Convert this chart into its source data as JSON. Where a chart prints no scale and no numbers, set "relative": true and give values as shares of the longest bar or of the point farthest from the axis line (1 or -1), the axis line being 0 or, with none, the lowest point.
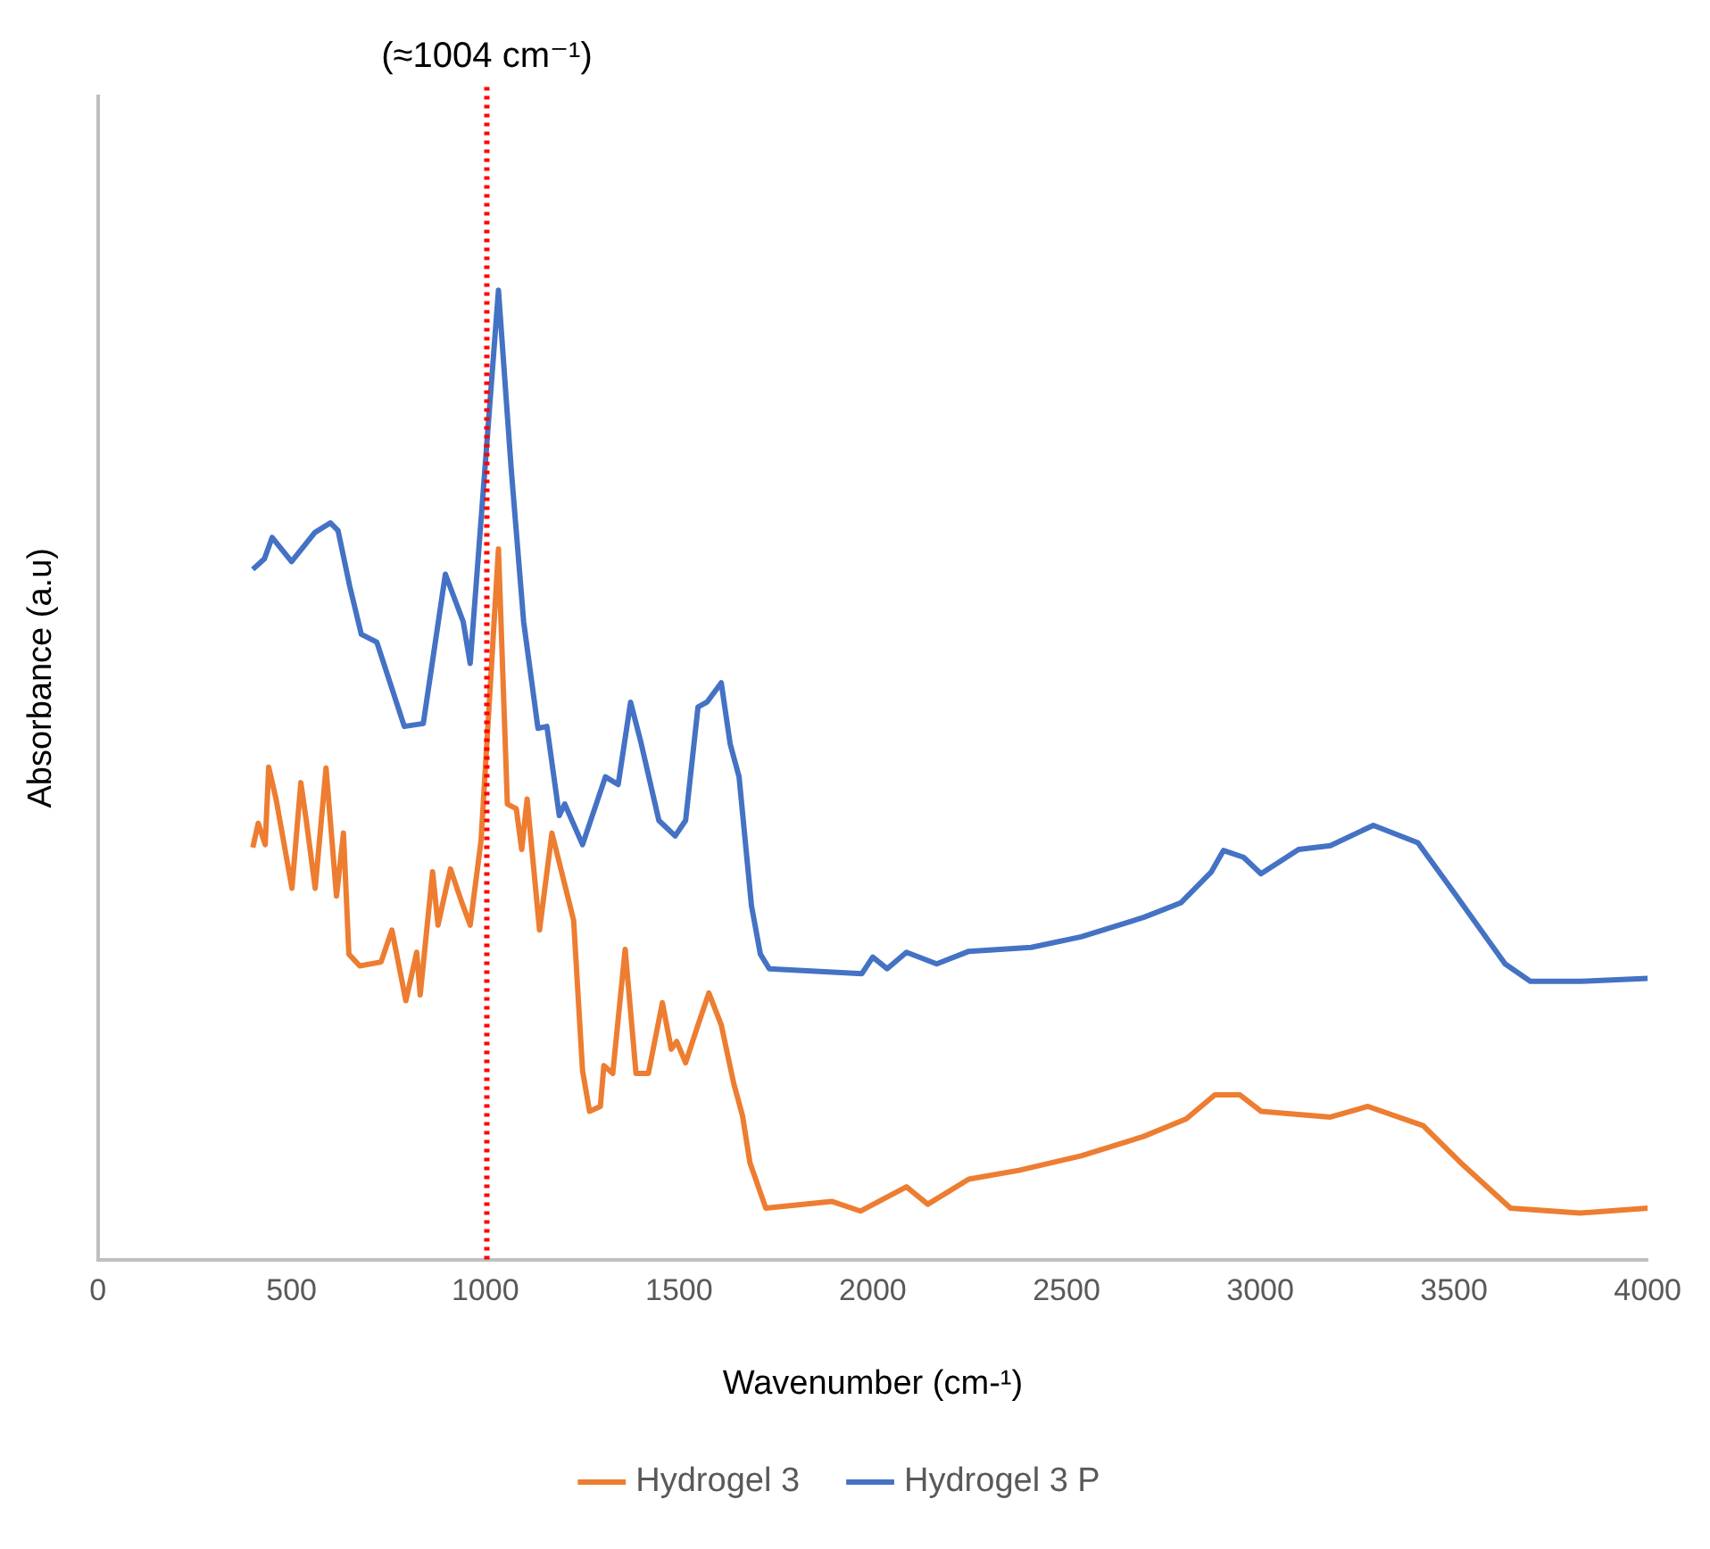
{
  "chart_data": {
    "type": "line",
    "xlabel": "Wavenumber (cm-¹)",
    "ylabel": "Absorbance (a.u)",
    "relative": true,
    "xlim": [
      0,
      4000
    ],
    "xticks": [
      0,
      500,
      1000,
      1500,
      2000,
      2500,
      3000,
      3500,
      4000
    ],
    "grid": false,
    "legend": "bottom",
    "marker": "none",
    "line_style": "solid",
    "ref_lines": [
      {
        "axis": "x",
        "value": 1004,
        "label": "(≈1004 cm⁻¹)",
        "color": "#ff0000",
        "line_style": "dotted"
      }
    ],
    "series": [
      {
        "name": "Hydrogel 3",
        "color": "#ed7d31",
        "x": [
          400,
          414,
          432,
          441,
          460,
          501,
          524,
          538,
          561,
          589,
          616,
          634,
          648,
          676,
          731,
          759,
          795,
          823,
          832,
          864,
          878,
          910,
          938,
          961,
          989,
          1034,
          1057,
          1080,
          1094,
          1108,
          1140,
          1172,
          1205,
          1228,
          1251,
          1269,
          1297,
          1306,
          1329,
          1361,
          1389,
          1421,
          1457,
          1480,
          1494,
          1517,
          1549,
          1577,
          1609,
          1641,
          1664,
          1683,
          1724,
          1894,
          1968,
          2087,
          2142,
          2248,
          2377,
          2538,
          2699,
          2809,
          2883,
          2947,
          3002,
          3181,
          3278,
          3421,
          3517,
          3646,
          3825,
          4000
        ],
        "values": [
          0.425,
          0.45,
          0.428,
          0.508,
          0.475,
          0.383,
          0.492,
          0.453,
          0.383,
          0.507,
          0.375,
          0.44,
          0.315,
          0.303,
          0.307,
          0.34,
          0.267,
          0.317,
          0.273,
          0.4,
          0.345,
          0.403,
          0.37,
          0.345,
          0.432,
          0.733,
          0.47,
          0.465,
          0.423,
          0.475,
          0.34,
          0.44,
          0.387,
          0.35,
          0.195,
          0.153,
          0.158,
          0.2,
          0.192,
          0.32,
          0.192,
          0.192,
          0.265,
          0.217,
          0.225,
          0.203,
          0.242,
          0.275,
          0.242,
          0.182,
          0.148,
          0.1,
          0.053,
          0.06,
          0.05,
          0.075,
          0.057,
          0.083,
          0.092,
          0.107,
          0.127,
          0.145,
          0.17,
          0.17,
          0.153,
          0.147,
          0.158,
          0.138,
          0.1,
          0.053,
          0.048,
          0.053
        ]
      },
      {
        "name": "Hydrogel 3 P",
        "color": "#4472c4",
        "x": [
          400,
          430,
          450,
          500,
          560,
          600,
          620,
          650,
          680,
          720,
          791,
          840,
          897,
          943,
          961,
          1034,
          1067,
          1099,
          1136,
          1159,
          1191,
          1205,
          1251,
          1310,
          1343,
          1375,
          1402,
          1448,
          1490,
          1517,
          1549,
          1572,
          1609,
          1632,
          1655,
          1687,
          1710,
          1733,
          1972,
          2000,
          2037,
          2087,
          2165,
          2248,
          2409,
          2538,
          2699,
          2795,
          2874,
          2905,
          2957,
          3002,
          3099,
          3181,
          3292,
          3407,
          3503,
          3632,
          3697,
          3825,
          4000
        ],
        "values": [
          0.712,
          0.723,
          0.745,
          0.72,
          0.75,
          0.76,
          0.752,
          0.695,
          0.645,
          0.637,
          0.55,
          0.553,
          0.707,
          0.658,
          0.615,
          1,
          0.815,
          0.658,
          0.548,
          0.55,
          0.458,
          0.47,
          0.428,
          0.498,
          0.49,
          0.575,
          0.533,
          0.453,
          0.437,
          0.453,
          0.57,
          0.575,
          0.595,
          0.532,
          0.498,
          0.365,
          0.315,
          0.3,
          0.295,
          0.312,
          0.3,
          0.317,
          0.305,
          0.318,
          0.322,
          0.333,
          0.353,
          0.368,
          0.4,
          0.422,
          0.415,
          0.398,
          0.423,
          0.427,
          0.448,
          0.43,
          0.377,
          0.305,
          0.287,
          0.287,
          0.29
        ]
      }
    ]
  }
}
